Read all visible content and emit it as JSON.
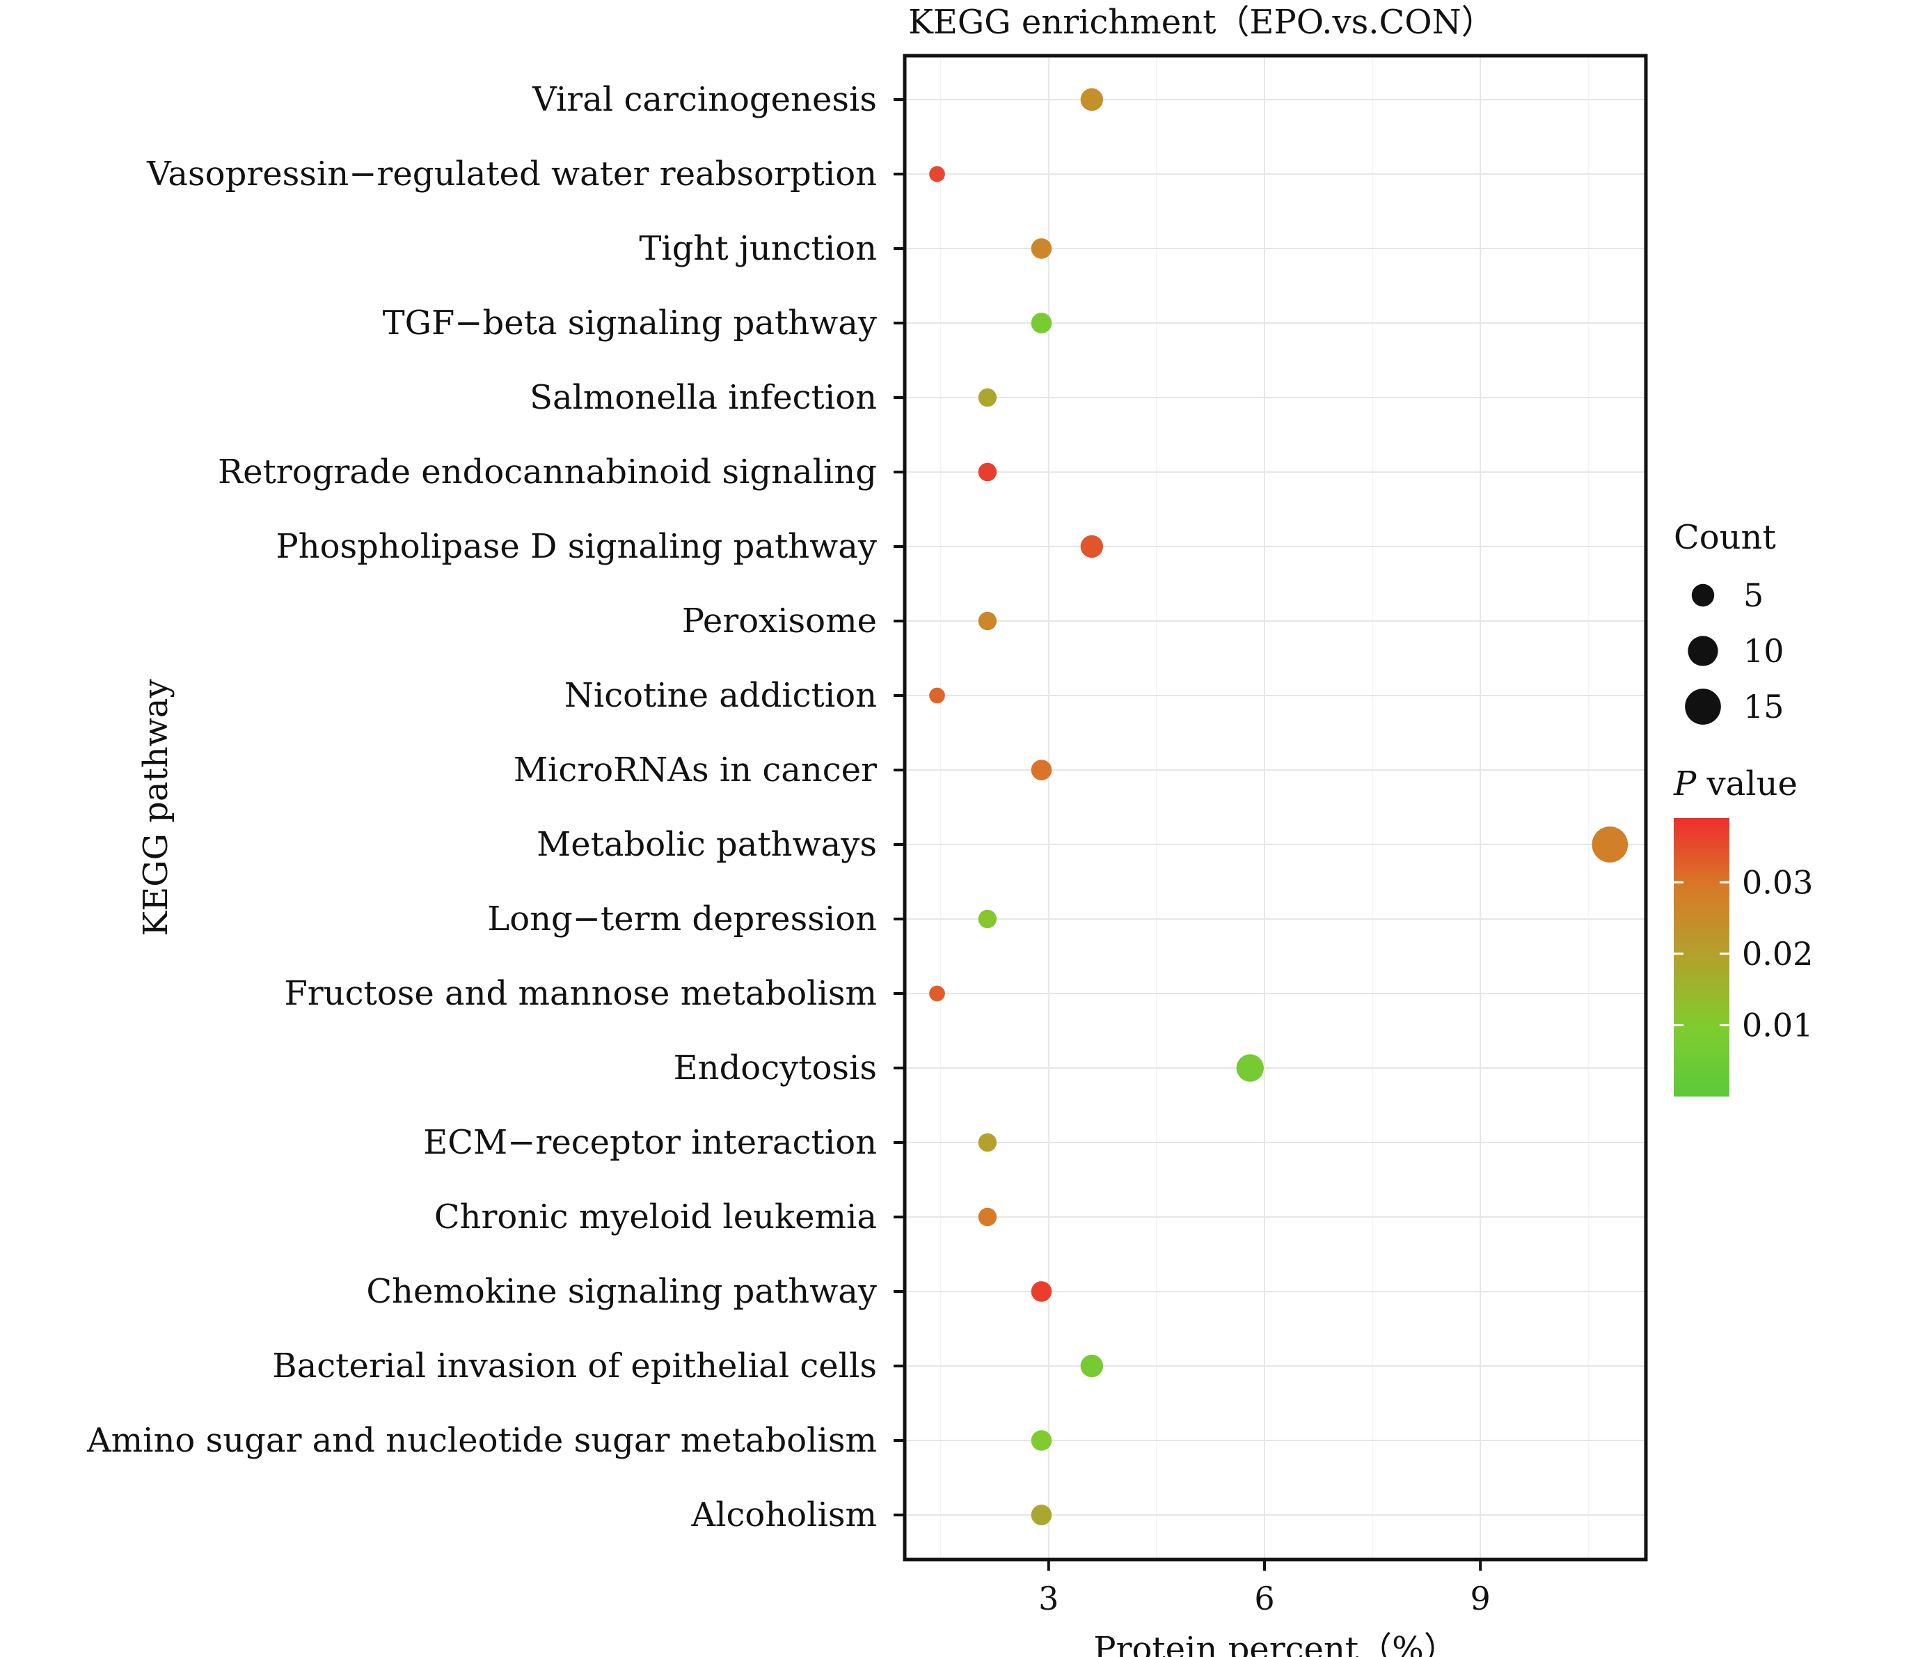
{
  "chart_data": {
    "type": "scatter",
    "title": "KEGG enrichment（EPO.vs.CON）",
    "xlabel": "Protein percent（%）",
    "ylabel": "KEGG pathway",
    "xlim": [
      1.0,
      11.3
    ],
    "x_ticks": [
      3,
      6,
      9
    ],
    "x_tick_labels": [
      "3",
      "6",
      "9"
    ],
    "grid": true,
    "categories": [
      "Viral carcinogenesis",
      "Vasopressin−regulated water reabsorption",
      "Tight junction",
      "TGF−beta signaling pathway",
      "Salmonella infection",
      "Retrograde endocannabinoid signaling",
      "Phospholipase D signaling pathway",
      "Peroxisome",
      "Nicotine addiction",
      "MicroRNAs in cancer",
      "Metabolic pathways",
      "Long−term depression",
      "Fructose and mannose metabolism",
      "Endocytosis",
      "ECM−receptor interaction",
      "Chronic myeloid leukemia",
      "Chemokine signaling pathway",
      "Bacterial invasion of epithelial cells",
      "Amino sugar and nucleotide sugar metabolism",
      "Alcoholism"
    ],
    "points": [
      {
        "pathway": "Viral carcinogenesis",
        "x": 3.6,
        "count": 5,
        "p": 0.024
      },
      {
        "pathway": "Vasopressin−regulated water reabsorption",
        "x": 1.45,
        "count": 2,
        "p": 0.036
      },
      {
        "pathway": "Tight junction",
        "x": 2.9,
        "count": 4,
        "p": 0.026
      },
      {
        "pathway": "TGF−beta signaling pathway",
        "x": 2.9,
        "count": 4,
        "p": 0.008
      },
      {
        "pathway": "Salmonella infection",
        "x": 2.15,
        "count": 3,
        "p": 0.018
      },
      {
        "pathway": "Retrograde endocannabinoid signaling",
        "x": 2.15,
        "count": 3,
        "p": 0.037
      },
      {
        "pathway": "Phospholipase D signaling pathway",
        "x": 3.6,
        "count": 5,
        "p": 0.034
      },
      {
        "pathway": "Peroxisome",
        "x": 2.15,
        "count": 3,
        "p": 0.026
      },
      {
        "pathway": "Nicotine addiction",
        "x": 1.45,
        "count": 2,
        "p": 0.032
      },
      {
        "pathway": "MicroRNAs in cancer",
        "x": 2.9,
        "count": 4,
        "p": 0.03
      },
      {
        "pathway": "Metabolic pathways",
        "x": 10.8,
        "count": 15,
        "p": 0.028
      },
      {
        "pathway": "Long−term depression",
        "x": 2.15,
        "count": 3,
        "p": 0.011
      },
      {
        "pathway": "Fructose and mannose metabolism",
        "x": 1.45,
        "count": 2,
        "p": 0.033
      },
      {
        "pathway": "Endocytosis",
        "x": 5.8,
        "count": 8,
        "p": 0.007
      },
      {
        "pathway": "ECM−receptor interaction",
        "x": 2.15,
        "count": 3,
        "p": 0.02
      },
      {
        "pathway": "Chronic myeloid leukemia",
        "x": 2.15,
        "count": 3,
        "p": 0.029
      },
      {
        "pathway": "Chemokine signaling pathway",
        "x": 2.9,
        "count": 4,
        "p": 0.037
      },
      {
        "pathway": "Bacterial invasion of epithelial cells",
        "x": 3.6,
        "count": 5,
        "p": 0.007
      },
      {
        "pathway": "Amino sugar and nucleotide sugar metabolism",
        "x": 2.9,
        "count": 4,
        "p": 0.01
      },
      {
        "pathway": "Alcoholism",
        "x": 2.9,
        "count": 4,
        "p": 0.018
      }
    ],
    "legend": {
      "placement": "right",
      "size": {
        "title": "Count",
        "values": [
          5,
          10,
          15
        ],
        "labels": [
          "5",
          "10",
          "15"
        ]
      },
      "color": {
        "title_italic": "P",
        "title_rest": " value",
        "range": [
          0.0,
          0.039
        ],
        "ticks": [
          0.03,
          0.02,
          0.01
        ],
        "tick_labels": [
          "0.03",
          "0.02",
          "0.01"
        ],
        "colors": {
          "low": "#5cc93a",
          "mid_low": "#7fcc2e",
          "mid": "#b2a22c",
          "mid_high": "#d77a28",
          "high": "#ee2e2e"
        }
      }
    }
  }
}
